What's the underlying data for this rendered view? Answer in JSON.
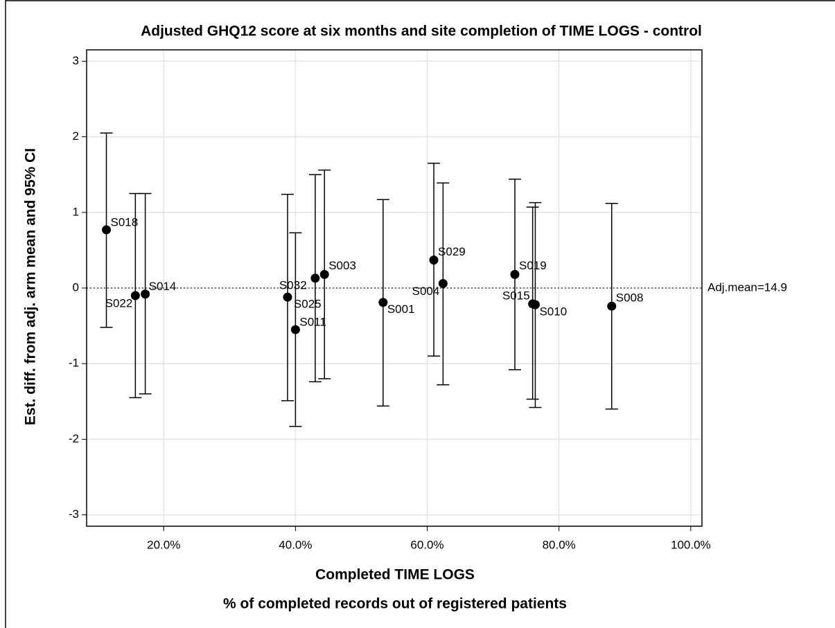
{
  "chart_data": {
    "type": "scatter",
    "title": "Adjusted GHQ12 score at six months and site completion of TIME LOGS - control",
    "x_label": "Completed TIME LOGS",
    "x_sublabel": "% of completed records out of registered patients",
    "y_label": "Est. diff. from adj. arm mean and 95% CI",
    "reference_label": "Adj.mean=14.9",
    "reference_value": 0,
    "labels": [
      "S018",
      "S022",
      "S014",
      "S032",
      "S011",
      "S025",
      "S003",
      "S001",
      "S029",
      "S004",
      "S019",
      "S015",
      "S010",
      "S008"
    ],
    "x": [
      11.3,
      15.7,
      17.2,
      38.8,
      40.0,
      43.0,
      44.4,
      53.3,
      61.0,
      62.4,
      73.3,
      76.0,
      76.4,
      88.0
    ],
    "values": [
      0.77,
      -0.1,
      -0.08,
      -0.12,
      -0.55,
      0.13,
      0.18,
      -0.19,
      0.37,
      0.06,
      0.18,
      -0.21,
      -0.22,
      -0.24
    ],
    "lower": [
      -0.52,
      -1.45,
      -1.4,
      -1.49,
      -1.83,
      -1.24,
      -1.2,
      -1.56,
      -0.9,
      -1.28,
      -1.08,
      -1.47,
      -1.58,
      -1.6
    ],
    "upper": [
      2.05,
      1.25,
      1.25,
      1.24,
      0.73,
      1.5,
      1.56,
      1.17,
      1.65,
      1.39,
      1.44,
      1.07,
      1.13,
      1.12
    ],
    "color": "#000000",
    "xlim": [
      8.3,
      101.7
    ],
    "ylim": [
      -3.15,
      3.15
    ],
    "xticks": [
      {
        "value": 20,
        "label": "20.0%"
      },
      {
        "value": 40,
        "label": "40.0%"
      },
      {
        "value": 60,
        "label": "60.0%"
      },
      {
        "value": 80,
        "label": "80.0%"
      },
      {
        "value": 100,
        "label": "100.0%"
      }
    ],
    "yticks": [
      -3,
      -2,
      -1,
      0,
      1,
      2,
      3
    ],
    "grid": true
  }
}
